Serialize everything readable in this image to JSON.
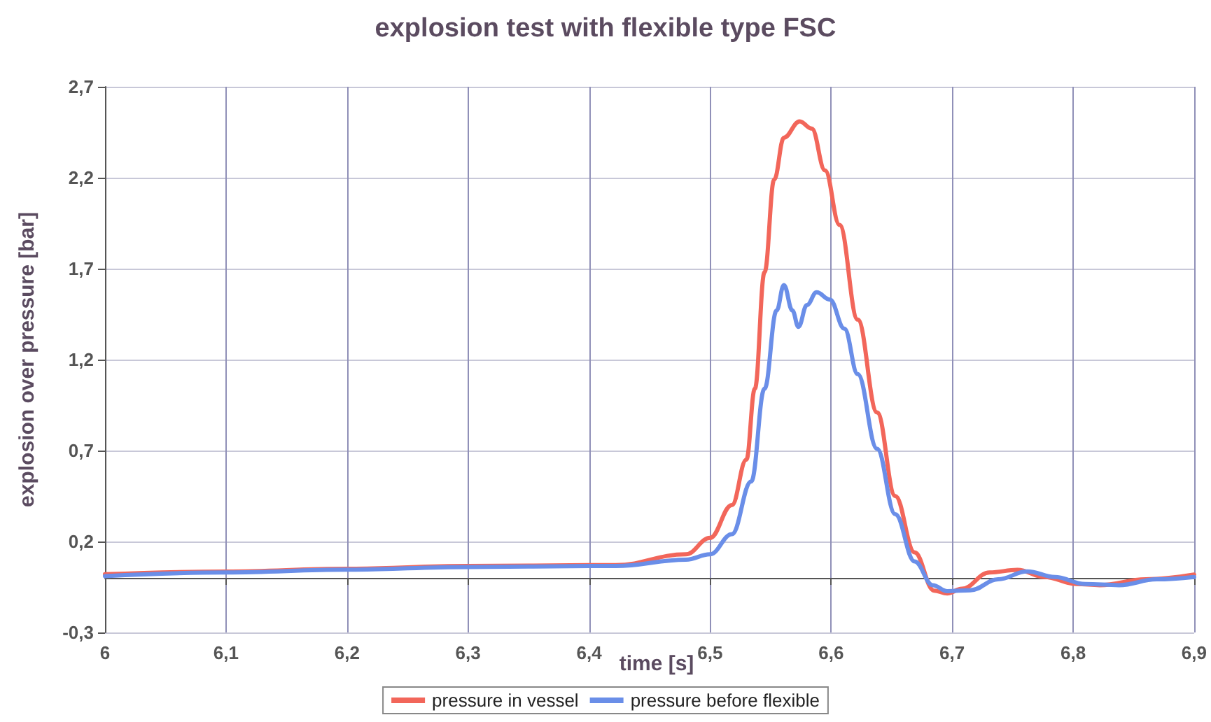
{
  "chart_data": {
    "type": "line",
    "title": "explosion test with flexible type FSC",
    "xlabel": "time [s]",
    "ylabel": "explosion over pressure [bar]",
    "xlim": [
      6,
      6.9
    ],
    "xticks": [
      {
        "value": 6,
        "label": "6"
      },
      {
        "value": 6.1,
        "label": "6,1"
      },
      {
        "value": 6.2,
        "label": "6,2"
      },
      {
        "value": 6.3,
        "label": "6,3"
      },
      {
        "value": 6.4,
        "label": "6,4"
      },
      {
        "value": 6.5,
        "label": "6,5"
      },
      {
        "value": 6.6,
        "label": "6,6"
      },
      {
        "value": 6.7,
        "label": "6,7"
      },
      {
        "value": 6.8,
        "label": "6,8"
      },
      {
        "value": 6.9,
        "label": "6,9"
      }
    ],
    "ylim": [
      -0.3,
      2.7
    ],
    "yticks": [
      {
        "value": -0.3,
        "label": "-0,3"
      },
      {
        "value": 0.2,
        "label": "0,2"
      },
      {
        "value": 0.7,
        "label": "0,7"
      },
      {
        "value": 1.2,
        "label": "1,2"
      },
      {
        "value": 1.7,
        "label": "1,7"
      },
      {
        "value": 2.2,
        "label": "2,2"
      },
      {
        "value": 2.7,
        "label": "2,7"
      }
    ],
    "grid": true,
    "legend": "bottom",
    "marker": "none",
    "line_style": "solid",
    "series": [
      {
        "name": "pressure in vessel",
        "color": "#f2665a",
        "x": [
          6,
          6.1,
          6.2,
          6.3,
          6.4,
          6.422,
          6.48,
          6.5,
          6.518,
          6.53,
          6.537,
          6.545,
          6.553,
          6.561,
          6.574,
          6.584,
          6.595,
          6.607,
          6.622,
          6.638,
          6.653,
          6.669,
          6.685,
          6.696,
          6.708,
          6.731,
          6.754,
          6.776,
          6.803,
          6.822,
          6.86,
          6.9
        ],
        "values": [
          0.02,
          0.035,
          0.05,
          0.065,
          0.07,
          0.07,
          0.13,
          0.22,
          0.4,
          0.65,
          1.04,
          1.68,
          2.19,
          2.42,
          2.51,
          2.47,
          2.24,
          1.94,
          1.42,
          0.91,
          0.45,
          0.14,
          -0.07,
          -0.086,
          -0.06,
          0.03,
          0.044,
          0.005,
          -0.034,
          -0.04,
          -0.008,
          0.018
        ]
      },
      {
        "name": "pressure before flexible",
        "color": "#6a8ee8",
        "x": [
          6,
          6.1,
          6.2,
          6.3,
          6.4,
          6.422,
          6.48,
          6.5,
          6.518,
          6.534,
          6.545,
          6.555,
          6.561,
          6.568,
          6.573,
          6.58,
          6.588,
          6.599,
          6.611,
          6.622,
          6.638,
          6.653,
          6.669,
          6.684,
          6.696,
          6.715,
          6.738,
          6.762,
          6.785,
          6.81,
          6.838,
          6.869,
          6.9
        ],
        "values": [
          0.01,
          0.03,
          0.045,
          0.06,
          0.065,
          0.065,
          0.1,
          0.13,
          0.24,
          0.53,
          1.04,
          1.47,
          1.61,
          1.47,
          1.38,
          1.5,
          1.57,
          1.53,
          1.37,
          1.12,
          0.71,
          0.35,
          0.09,
          -0.04,
          -0.073,
          -0.068,
          -0.008,
          0.036,
          0.005,
          -0.034,
          -0.04,
          -0.008,
          0.005
        ]
      }
    ]
  }
}
